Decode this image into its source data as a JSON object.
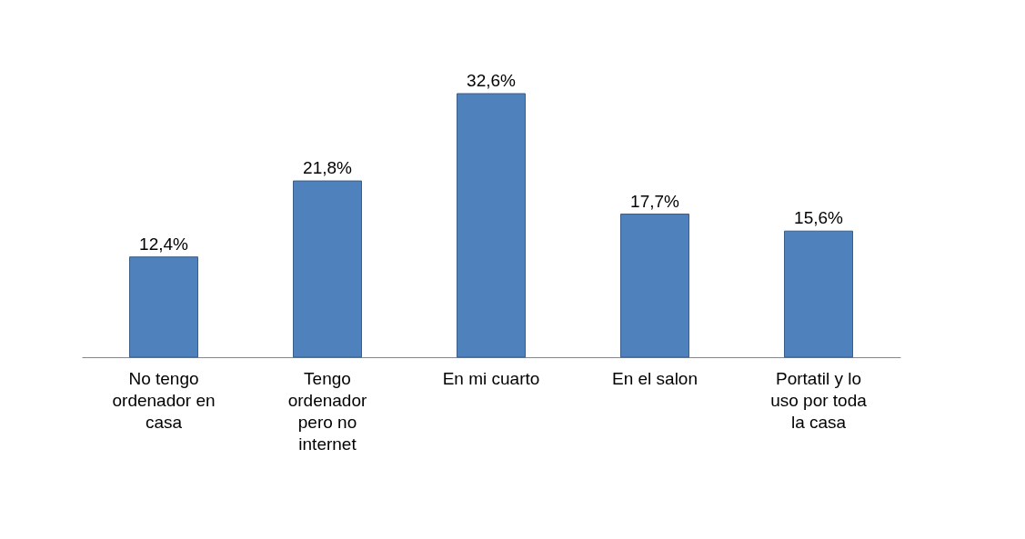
{
  "chart_data": {
    "type": "bar",
    "categories": [
      "No tengo ordenador en casa",
      "Tengo ordenador pero no internet",
      "En mi cuarto",
      "En el salon",
      "Portatil y lo uso por toda la casa"
    ],
    "values": [
      12.4,
      21.8,
      32.6,
      17.7,
      15.6
    ],
    "value_labels": [
      "12,4%",
      "21,8%",
      "32,6%",
      "17,7%",
      "15,6%"
    ],
    "color": "#4f81bd",
    "grid": false
  }
}
